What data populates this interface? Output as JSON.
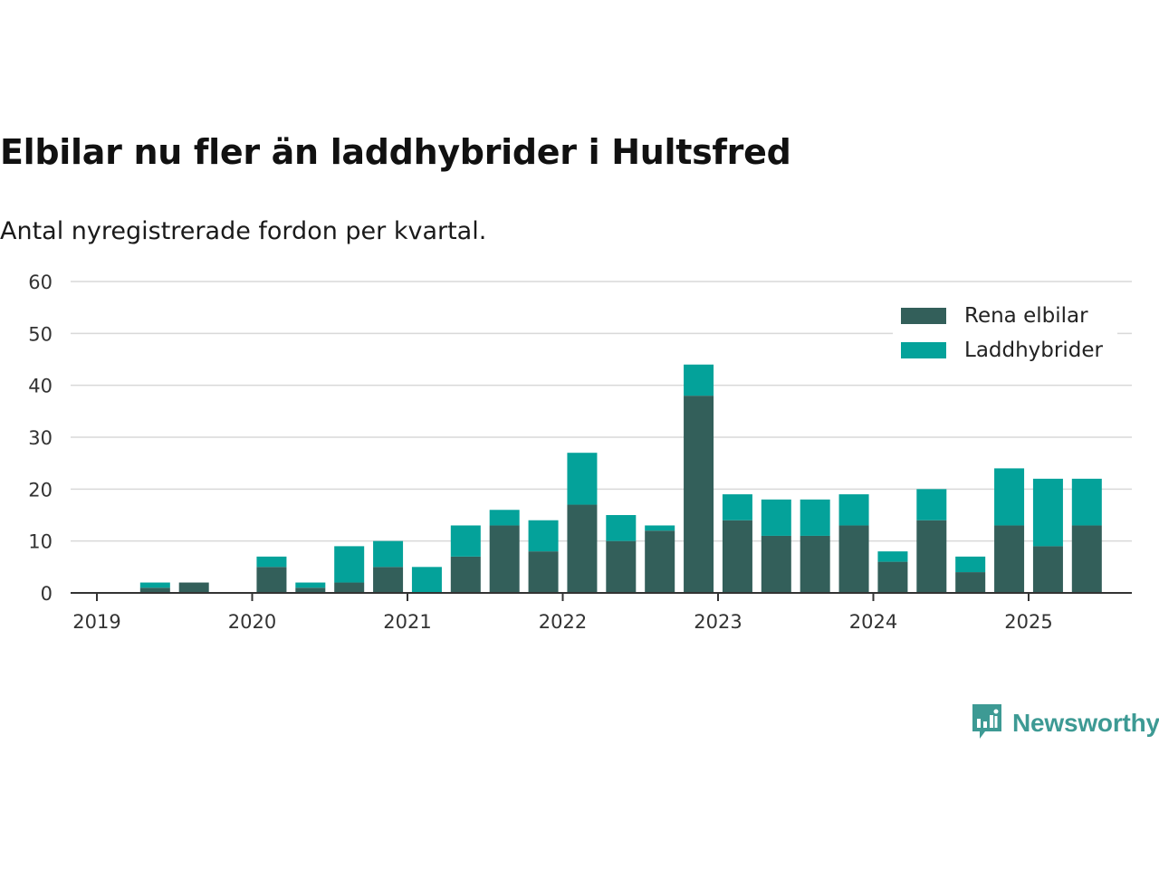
{
  "header": {
    "title": "Elbilar nu fler än laddhybrider i Hultsfred",
    "subtitle": "Antal nyregistrerade fordon per kvartal."
  },
  "brand": {
    "name": "Newsworthy",
    "icon": "newsworthy-logo-icon",
    "color": "#3d9a94"
  },
  "colors": {
    "series_1": "#335f5a",
    "series_2": "#04a29a",
    "grid": "#d9d9d9",
    "axis": "#333333"
  },
  "chart_data": {
    "type": "bar",
    "stacked": true,
    "title": "Elbilar nu fler än laddhybrider i Hultsfred",
    "subtitle": "Antal nyregistrerade fordon per kvartal.",
    "xlabel": "",
    "ylabel": "",
    "x": [
      "2019-Q2",
      "2019-Q3",
      "2019-Q4",
      "2020-Q1",
      "2020-Q2",
      "2020-Q3",
      "2020-Q4",
      "2021-Q1",
      "2021-Q2",
      "2021-Q3",
      "2021-Q4",
      "2022-Q1",
      "2022-Q2",
      "2022-Q3",
      "2022-Q4",
      "2023-Q1",
      "2023-Q2",
      "2023-Q3",
      "2023-Q4",
      "2024-Q1",
      "2024-Q2",
      "2024-Q3",
      "2024-Q4",
      "2025-Q1",
      "2025-Q2"
    ],
    "series": [
      {
        "name": "Rena elbilar",
        "color": "#335f5a",
        "values": [
          1,
          2,
          0,
          5,
          1,
          2,
          5,
          0,
          7,
          13,
          8,
          17,
          10,
          12,
          38,
          14,
          11,
          11,
          13,
          6,
          14,
          4,
          13,
          9,
          13
        ]
      },
      {
        "name": "Laddhybrider",
        "color": "#04a29a",
        "values": [
          1,
          0,
          0,
          2,
          1,
          7,
          5,
          5,
          6,
          3,
          6,
          10,
          5,
          1,
          6,
          5,
          7,
          7,
          6,
          2,
          6,
          3,
          11,
          13,
          9
        ]
      }
    ],
    "xticks": [
      "2019",
      "2020",
      "2021",
      "2022",
      "2023",
      "2024",
      "2025"
    ],
    "yticks": [
      "0",
      "10",
      "20",
      "30",
      "40",
      "50",
      "60"
    ],
    "ylim": [
      0,
      60
    ],
    "grid": true,
    "legend_position": "top-right"
  }
}
